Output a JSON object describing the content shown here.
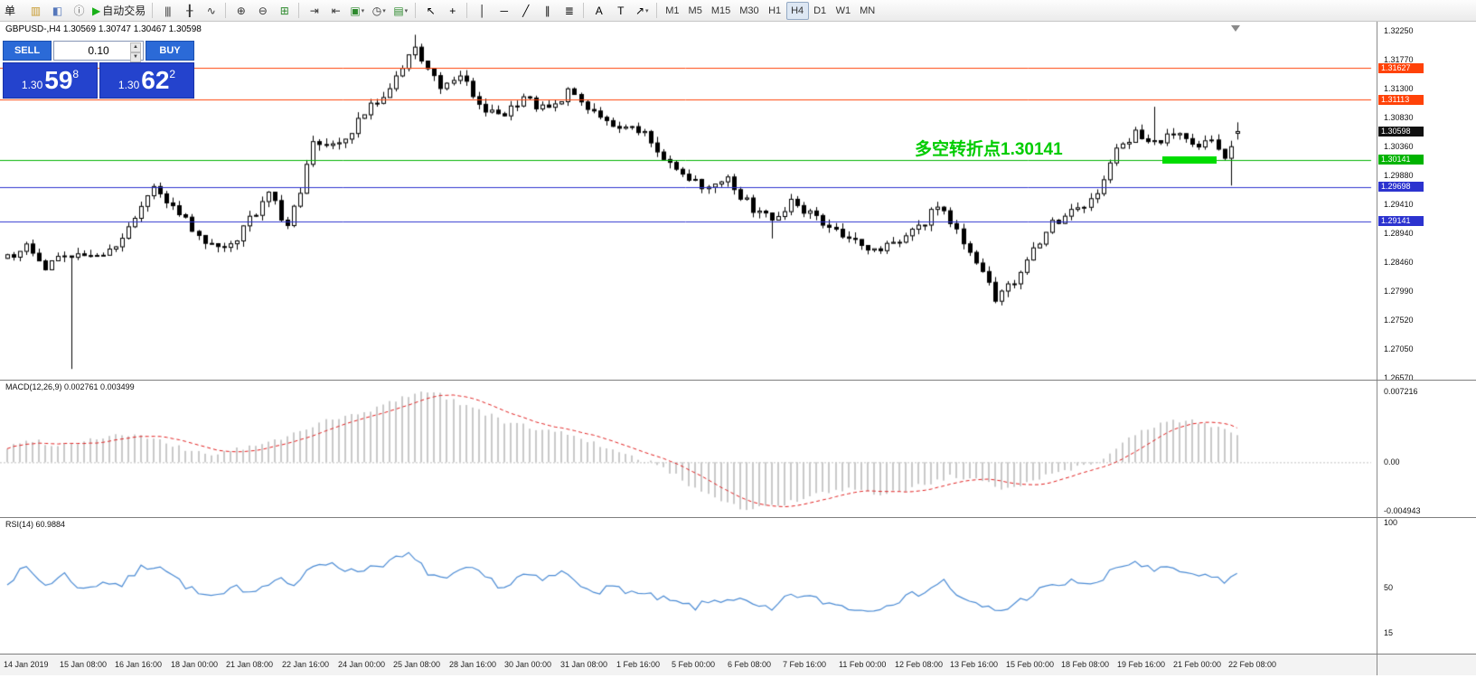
{
  "toolbar": {
    "menu_label": "单",
    "items": [
      {
        "name": "new-order-icon",
        "glyph": "▥",
        "color": "#c79a2e"
      },
      {
        "name": "metaeditor-icon",
        "glyph": "◧",
        "color": "#5577bb"
      },
      {
        "name": "data-window-icon",
        "glyph": "ⓘ",
        "color": "#666666"
      },
      {
        "name": "autotrading-button",
        "glyph": "▶",
        "color": "#18b018",
        "label": "自动交易"
      },
      {
        "sep": true
      },
      {
        "name": "bar-chart-icon",
        "glyph": "|||",
        "color": "#333333"
      },
      {
        "name": "candlestick-chart-icon",
        "glyph": "╂",
        "color": "#333333"
      },
      {
        "name": "line-chart-icon",
        "glyph": "∿",
        "color": "#333333"
      },
      {
        "sep": true
      },
      {
        "name": "zoom-in-icon",
        "glyph": "⊕",
        "color": "#333333"
      },
      {
        "name": "zoom-out-icon",
        "glyph": "⊖",
        "color": "#333333"
      },
      {
        "name": "tile-windows-icon",
        "glyph": "⊞",
        "color": "#2d8a2d"
      },
      {
        "sep": true
      },
      {
        "name": "auto-scroll-icon",
        "glyph": "⇥",
        "color": "#333333"
      },
      {
        "name": "chart-shift-icon",
        "glyph": "⇤",
        "color": "#333333"
      },
      {
        "name": "new-chart-icon",
        "glyph": "▣",
        "color": "#2d8a2d",
        "dropdown": true
      },
      {
        "name": "period-icon",
        "glyph": "◷",
        "color": "#333333",
        "dropdown": true
      },
      {
        "name": "indicators-icon",
        "glyph": "▤",
        "color": "#2d8a2d",
        "dropdown": true
      },
      {
        "sep": true
      },
      {
        "name": "cursor-icon",
        "glyph": "↖",
        "color": "#000000"
      },
      {
        "name": "crosshair-icon",
        "glyph": "+",
        "color": "#000000"
      },
      {
        "sep": true
      },
      {
        "name": "vertical-line-icon",
        "glyph": "│",
        "color": "#000000"
      },
      {
        "name": "horizontal-line-icon",
        "glyph": "─",
        "color": "#000000"
      },
      {
        "name": "trendline-icon",
        "glyph": "╱",
        "color": "#000000"
      },
      {
        "name": "channel-icon",
        "glyph": "∥",
        "color": "#000000"
      },
      {
        "name": "fibonacci-icon",
        "glyph": "≣",
        "color": "#000000"
      },
      {
        "sep": true
      },
      {
        "name": "text-icon",
        "glyph": "A",
        "color": "#000000"
      },
      {
        "name": "label-icon",
        "glyph": "T",
        "color": "#000000"
      },
      {
        "name": "arrows-icon",
        "glyph": "↗",
        "color": "#000000",
        "dropdown": true
      },
      {
        "sep": true
      }
    ],
    "timeframes": [
      "M1",
      "M5",
      "M15",
      "M30",
      "H1",
      "H4",
      "D1",
      "W1",
      "MN"
    ],
    "active_timeframe": "H4"
  },
  "trade_panel": {
    "sell_label": "SELL",
    "buy_label": "BUY",
    "lot_size": "0.10",
    "sell_price": {
      "prefix": "1.30",
      "big": "59",
      "sup": "8"
    },
    "buy_price": {
      "prefix": "1.30",
      "big": "62",
      "sup": "2"
    }
  },
  "chart": {
    "symbol_header": "GBPUSD-,H4  1.30569 1.30747 1.30467 1.30598",
    "annotation": "多空转折点1.30141",
    "levels": [
      {
        "price": "1.31627",
        "color": "#ff4208",
        "line": true
      },
      {
        "price": "1.31113",
        "color": "#ff4208",
        "line": true
      },
      {
        "price": "1.30598",
        "color": "#111111",
        "line": false
      },
      {
        "price": "1.30141",
        "color": "#00b300",
        "line": true
      },
      {
        "price": "1.29698",
        "color": "#2c33cf",
        "line": true
      },
      {
        "price": "1.29141",
        "color": "#2c33cf",
        "line": true
      }
    ],
    "price_axis": [
      "1.32250",
      "1.31770",
      "1.31300",
      "1.30830",
      "1.30360",
      "1.29880",
      "1.29410",
      "1.28940",
      "1.28460",
      "1.27990",
      "1.27520",
      "1.27050",
      "1.26570"
    ],
    "time_axis": [
      "14 Jan 2019",
      "15 Jan 08:00",
      "16 Jan 16:00",
      "18 Jan 00:00",
      "21 Jan 08:00",
      "22 Jan 16:00",
      "24 Jan 00:00",
      "25 Jan 08:00",
      "28 Jan 16:00",
      "30 Jan 00:00",
      "31 Jan 08:00",
      "1 Feb 16:00",
      "5 Feb 00:00",
      "6 Feb 08:00",
      "7 Feb 16:00",
      "11 Feb 00:00",
      "12 Feb 08:00",
      "13 Feb 16:00",
      "15 Feb 00:00",
      "18 Feb 08:00",
      "19 Feb 16:00",
      "21 Feb 00:00",
      "22 Feb 08:00"
    ]
  },
  "macd": {
    "label": "MACD(12,26,9) 0.002761 0.003499",
    "axis": [
      "0.007216",
      "0.00",
      "-0.004943"
    ]
  },
  "rsi": {
    "label": "RSI(14) 60.9884",
    "axis": [
      "100",
      "50",
      "15"
    ]
  },
  "chart_data": {
    "type": "candlestick",
    "symbol": "GBPUSD",
    "timeframe": "H4",
    "bars": 194,
    "bid": "1.30598",
    "ask": "1.30622",
    "last_bar": {
      "open": 1.30569,
      "high": 1.30747,
      "low": 1.30467,
      "close": 1.30598
    },
    "price_range": [
      1.2657,
      1.3225
    ],
    "noise": 0.0016,
    "close_anchors": [
      [
        0,
        1.2852
      ],
      [
        3,
        1.2872
      ],
      [
        6,
        1.2842
      ],
      [
        10,
        1.2856
      ],
      [
        13,
        1.285
      ],
      [
        18,
        1.2882
      ],
      [
        23,
        1.2968
      ],
      [
        26,
        1.2942
      ],
      [
        29,
        1.2904
      ],
      [
        33,
        1.2866
      ],
      [
        36,
        1.289
      ],
      [
        41,
        1.2958
      ],
      [
        44,
        1.2906
      ],
      [
        46,
        1.2958
      ],
      [
        48,
        1.3044
      ],
      [
        52,
        1.3038
      ],
      [
        56,
        1.3088
      ],
      [
        61,
        1.3146
      ],
      [
        64,
        1.3198
      ],
      [
        66,
        1.3164
      ],
      [
        68,
        1.3122
      ],
      [
        71,
        1.3158
      ],
      [
        74,
        1.3104
      ],
      [
        77,
        1.3082
      ],
      [
        81,
        1.3112
      ],
      [
        85,
        1.3092
      ],
      [
        88,
        1.3128
      ],
      [
        91,
        1.3094
      ],
      [
        95,
        1.3062
      ],
      [
        98,
        1.3072
      ],
      [
        102,
        1.3032
      ],
      [
        106,
        1.2992
      ],
      [
        110,
        1.2962
      ],
      [
        113,
        1.2984
      ],
      [
        116,
        1.2944
      ],
      [
        120,
        1.2912
      ],
      [
        123,
        1.2948
      ],
      [
        127,
        1.2922
      ],
      [
        131,
        1.2892
      ],
      [
        135,
        1.2862
      ],
      [
        139,
        1.2874
      ],
      [
        143,
        1.2902
      ],
      [
        146,
        1.2938
      ],
      [
        149,
        1.2902
      ],
      [
        152,
        1.2852
      ],
      [
        155,
        1.2792
      ],
      [
        158,
        1.2812
      ],
      [
        161,
        1.2868
      ],
      [
        164,
        1.2908
      ],
      [
        168,
        1.2938
      ],
      [
        171,
        1.2952
      ],
      [
        174,
        1.3028
      ],
      [
        177,
        1.3058
      ],
      [
        180,
        1.3044
      ],
      [
        183,
        1.3058
      ],
      [
        186,
        1.3032
      ],
      [
        189,
        1.3044
      ],
      [
        191,
        1.3022
      ],
      [
        193,
        1.30598
      ]
    ],
    "wick_overrides": [
      [
        10,
        "low",
        1.2674
      ],
      [
        64,
        "high",
        1.3217
      ],
      [
        120,
        "low",
        1.2886
      ],
      [
        180,
        "high",
        1.31
      ],
      [
        192,
        "low",
        1.2972
      ]
    ],
    "support_resistance": [
      1.31627,
      1.31113,
      1.30141,
      1.29698,
      1.29141
    ],
    "macd": {
      "params": [
        12,
        26,
        9
      ],
      "value": 0.002761,
      "signal": 0.003499,
      "range": [
        -0.004943,
        0.007216
      ],
      "anchors": [
        [
          0,
          0.0015
        ],
        [
          4,
          0.0023
        ],
        [
          8,
          0.0017
        ],
        [
          12,
          0.0022
        ],
        [
          16,
          0.0027
        ],
        [
          20,
          0.0028
        ],
        [
          24,
          0.0021
        ],
        [
          28,
          0.0013
        ],
        [
          32,
          0.0008
        ],
        [
          36,
          0.0013
        ],
        [
          40,
          0.0018
        ],
        [
          44,
          0.0026
        ],
        [
          48,
          0.0038
        ],
        [
          52,
          0.0045
        ],
        [
          56,
          0.005
        ],
        [
          60,
          0.0061
        ],
        [
          64,
          0.0071
        ],
        [
          67,
          0.0072
        ],
        [
          70,
          0.0063
        ],
        [
          74,
          0.0053
        ],
        [
          78,
          0.0041
        ],
        [
          82,
          0.0036
        ],
        [
          86,
          0.0031
        ],
        [
          90,
          0.0026
        ],
        [
          94,
          0.0013
        ],
        [
          98,
          0.0005
        ],
        [
          101,
          0.0
        ],
        [
          104,
          -0.001
        ],
        [
          108,
          -0.0026
        ],
        [
          112,
          -0.0038
        ],
        [
          116,
          -0.0049
        ],
        [
          120,
          -0.0044
        ],
        [
          124,
          -0.004
        ],
        [
          128,
          -0.0031
        ],
        [
          132,
          -0.0028
        ],
        [
          136,
          -0.0033
        ],
        [
          140,
          -0.003
        ],
        [
          144,
          -0.0022
        ],
        [
          148,
          -0.0015
        ],
        [
          152,
          -0.0019
        ],
        [
          156,
          -0.0026
        ],
        [
          160,
          -0.0021
        ],
        [
          164,
          -0.0011
        ],
        [
          168,
          -0.0005
        ],
        [
          171,
          0.0001
        ],
        [
          174,
          0.0016
        ],
        [
          178,
          0.0031
        ],
        [
          182,
          0.0041
        ],
        [
          186,
          0.0043
        ],
        [
          189,
          0.0038
        ],
        [
          193,
          0.002761
        ]
      ]
    },
    "rsi": {
      "period": 14,
      "value": 60.9884,
      "range": [
        0,
        100
      ],
      "anchors": [
        [
          0,
          55
        ],
        [
          3,
          65
        ],
        [
          6,
          52
        ],
        [
          9,
          60
        ],
        [
          12,
          48
        ],
        [
          15,
          55
        ],
        [
          18,
          52
        ],
        [
          21,
          65
        ],
        [
          24,
          68
        ],
        [
          27,
          55
        ],
        [
          30,
          45
        ],
        [
          33,
          42
        ],
        [
          36,
          50
        ],
        [
          39,
          48
        ],
        [
          42,
          58
        ],
        [
          45,
          52
        ],
        [
          48,
          65
        ],
        [
          51,
          70
        ],
        [
          54,
          62
        ],
        [
          57,
          66
        ],
        [
          60,
          70
        ],
        [
          63,
          75
        ],
        [
          66,
          62
        ],
        [
          69,
          55
        ],
        [
          72,
          65
        ],
        [
          75,
          58
        ],
        [
          78,
          50
        ],
        [
          81,
          60
        ],
        [
          84,
          55
        ],
        [
          87,
          62
        ],
        [
          90,
          52
        ],
        [
          93,
          48
        ],
        [
          96,
          50
        ],
        [
          99,
          45
        ],
        [
          102,
          42
        ],
        [
          105,
          38
        ],
        [
          108,
          35
        ],
        [
          111,
          40
        ],
        [
          114,
          42
        ],
        [
          117,
          36
        ],
        [
          120,
          32
        ],
        [
          123,
          45
        ],
        [
          126,
          42
        ],
        [
          129,
          38
        ],
        [
          132,
          35
        ],
        [
          135,
          32
        ],
        [
          138,
          38
        ],
        [
          141,
          42
        ],
        [
          144,
          48
        ],
        [
          147,
          55
        ],
        [
          150,
          40
        ],
        [
          153,
          35
        ],
        [
          156,
          32
        ],
        [
          159,
          40
        ],
        [
          162,
          48
        ],
        [
          165,
          52
        ],
        [
          168,
          55
        ],
        [
          171,
          52
        ],
        [
          174,
          65
        ],
        [
          177,
          70
        ],
        [
          180,
          62
        ],
        [
          183,
          65
        ],
        [
          186,
          58
        ],
        [
          189,
          60
        ],
        [
          191,
          54
        ],
        [
          193,
          60.9884
        ]
      ]
    }
  }
}
